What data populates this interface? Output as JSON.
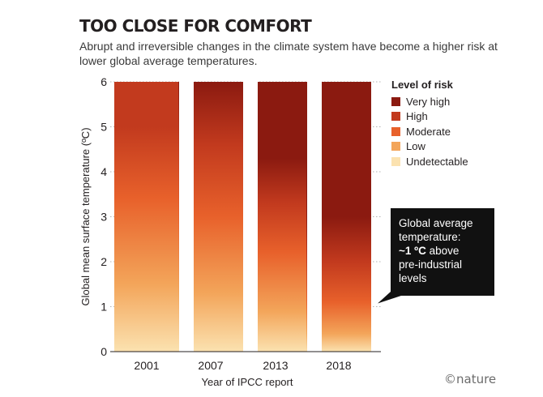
{
  "header": {
    "title": "TOO CLOSE FOR COMFORT",
    "subtitle": "Abrupt and irreversible changes in the climate system have become a higher risk at lower global average temperatures."
  },
  "legend": {
    "title": "Level of risk",
    "items": [
      {
        "label": "Very high",
        "color": "#8b1a10"
      },
      {
        "label": "High",
        "color": "#c23a1e"
      },
      {
        "label": "Moderate",
        "color": "#e8612b"
      },
      {
        "label": "Low",
        "color": "#f3a55a"
      },
      {
        "label": "Undetectable",
        "color": "#fbe2b0"
      }
    ]
  },
  "callout": {
    "line1": "Global average",
    "line2": "temperature:",
    "strong": "~1 ºC",
    "line3_rest": " above",
    "line4": "pre-industrial",
    "line5": "levels",
    "temperature": 1
  },
  "credit": "©nature",
  "chart_data": {
    "type": "bar",
    "xlabel": "Year of IPCC report",
    "ylabel": "Global mean surface temperature (ºC)",
    "ylim": [
      0,
      6
    ],
    "yticks": [
      "0",
      "1",
      "2",
      "3",
      "4",
      "5",
      "6"
    ],
    "categories": [
      "2001",
      "2007",
      "2013",
      "2018"
    ],
    "values": [
      6,
      6,
      6,
      6
    ],
    "risk_gradients": [
      {
        "report": "2001",
        "stops": [
          {
            "t": 0,
            "level": "Undetectable"
          },
          {
            "t": 1.5,
            "level": "Low"
          },
          {
            "t": 3.4,
            "level": "Moderate"
          },
          {
            "t": 5.0,
            "level": "High"
          },
          {
            "t": 6,
            "level": "High"
          }
        ]
      },
      {
        "report": "2007",
        "stops": [
          {
            "t": 0,
            "level": "Undetectable"
          },
          {
            "t": 1.3,
            "level": "Low"
          },
          {
            "t": 3.0,
            "level": "Moderate"
          },
          {
            "t": 4.6,
            "level": "High"
          },
          {
            "t": 6,
            "level": "Very high"
          }
        ]
      },
      {
        "report": "2013",
        "stops": [
          {
            "t": 0,
            "level": "Undetectable"
          },
          {
            "t": 0.9,
            "level": "Low"
          },
          {
            "t": 2.2,
            "level": "Moderate"
          },
          {
            "t": 3.3,
            "level": "High"
          },
          {
            "t": 4.3,
            "level": "Very high"
          },
          {
            "t": 6,
            "level": "Very high"
          }
        ]
      },
      {
        "report": "2018",
        "stops": [
          {
            "t": 0,
            "level": "Undetectable"
          },
          {
            "t": 0.4,
            "level": "Low"
          },
          {
            "t": 1.1,
            "level": "Moderate"
          },
          {
            "t": 2.0,
            "level": "High"
          },
          {
            "t": 3.0,
            "level": "Very high"
          },
          {
            "t": 6,
            "level": "Very high"
          }
        ]
      }
    ]
  }
}
